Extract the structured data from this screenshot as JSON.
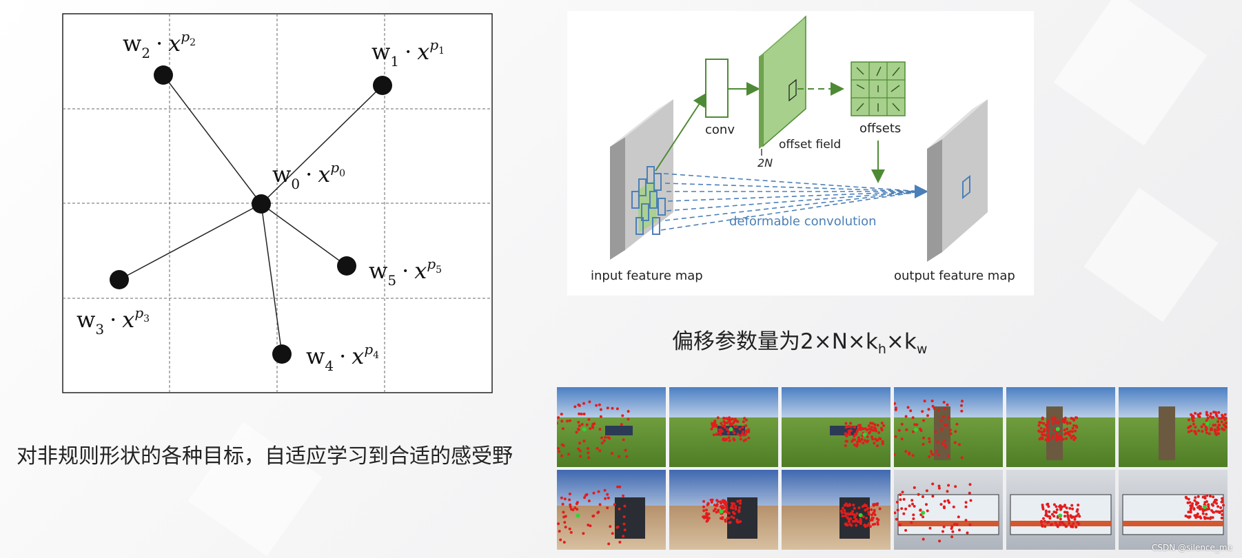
{
  "grid_diagram": {
    "nodes": [
      {
        "id": "w0",
        "w": "w",
        "w_sub": "0",
        "x": "x",
        "p": "p",
        "p_sub": "0"
      },
      {
        "id": "w1",
        "w": "w",
        "w_sub": "1",
        "x": "x",
        "p": "p",
        "p_sub": "1"
      },
      {
        "id": "w2",
        "w": "w",
        "w_sub": "2",
        "x": "x",
        "p": "p",
        "p_sub": "2"
      },
      {
        "id": "w3",
        "w": "w",
        "w_sub": "3",
        "x": "x",
        "p": "p",
        "p_sub": "3"
      },
      {
        "id": "w4",
        "w": "w",
        "w_sub": "4",
        "x": "x",
        "p": "p",
        "p_sub": "4"
      },
      {
        "id": "w5",
        "w": "w",
        "w_sub": "5",
        "x": "x",
        "p": "p",
        "p_sub": "5"
      }
    ],
    "dot_operator": "·"
  },
  "deformable_diagram": {
    "input_label": "input feature map",
    "output_label": "output feature map",
    "conv_label": "conv",
    "offset_field_label": "offset field",
    "two_n_label": "2N",
    "offsets_label": "offsets",
    "deformable_label": "deformable convolution",
    "colors": {
      "green": "#4e8a35",
      "light_green": "#a7d08c",
      "blue": "#4a7fb7",
      "gray": "#c9c9c9"
    }
  },
  "formula_caption": {
    "prefix": "偏移参数量为2×N×k",
    "sub_h": "h",
    "mid": "×k",
    "sub_w": "w"
  },
  "left_caption": "对非规则形状的各种目标，自适应学习到合适的感受野",
  "watermark": "CSDN @silence_me",
  "thumbnails": [
    {
      "row": 0,
      "scene": "cars"
    },
    {
      "row": 0,
      "scene": "cars"
    },
    {
      "row": 0,
      "scene": "cars"
    },
    {
      "row": 0,
      "scene": "person"
    },
    {
      "row": 0,
      "scene": "person"
    },
    {
      "row": 0,
      "scene": "person"
    },
    {
      "row": 1,
      "scene": "desert"
    },
    {
      "row": 1,
      "scene": "desert"
    },
    {
      "row": 1,
      "scene": "desert"
    },
    {
      "row": 1,
      "scene": "street"
    },
    {
      "row": 1,
      "scene": "street"
    },
    {
      "row": 1,
      "scene": "street"
    }
  ]
}
